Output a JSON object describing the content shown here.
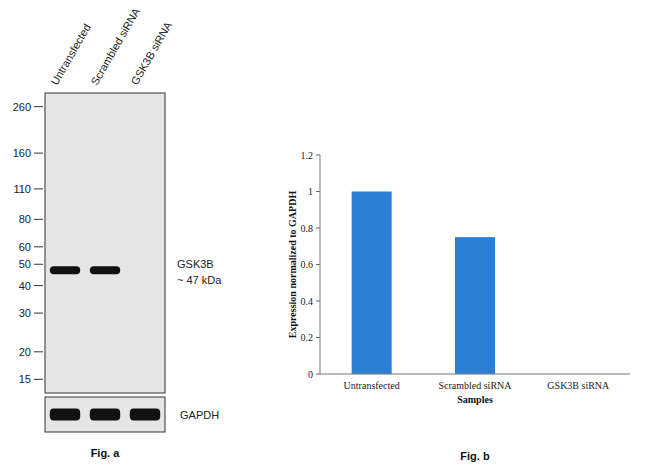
{
  "chart_data": {
    "type": "bar",
    "title": "Fig. b",
    "x_label": "Samples",
    "y_label": "Expression normalized to GAPDH",
    "categories": [
      "Untransfected",
      "Scrambled siRNA",
      "GSK3B siRNA"
    ],
    "values": [
      1,
      0.75,
      0
    ],
    "color": "#2b80d6",
    "ylim": [
      0,
      1.2
    ],
    "yticks": [
      0,
      0.2,
      0.4,
      0.6,
      0.8,
      1,
      1.2
    ],
    "grid": false
  },
  "blot": {
    "title": "Fig. a",
    "lanes": [
      "Untransfected",
      "Scrambled siRNA",
      "GSK3B siRNA"
    ],
    "markers": [
      260,
      160,
      110,
      80,
      60,
      50,
      40,
      30,
      20,
      15
    ],
    "mw_range": [
      13,
      300
    ],
    "log": true,
    "bands": [
      {
        "name": "GSK3B",
        "label": "~ 47 kDa",
        "kda": 47,
        "present": [
          true,
          true,
          false
        ]
      },
      {
        "name": "GAPDH",
        "present": [
          true,
          true,
          true
        ]
      }
    ]
  }
}
